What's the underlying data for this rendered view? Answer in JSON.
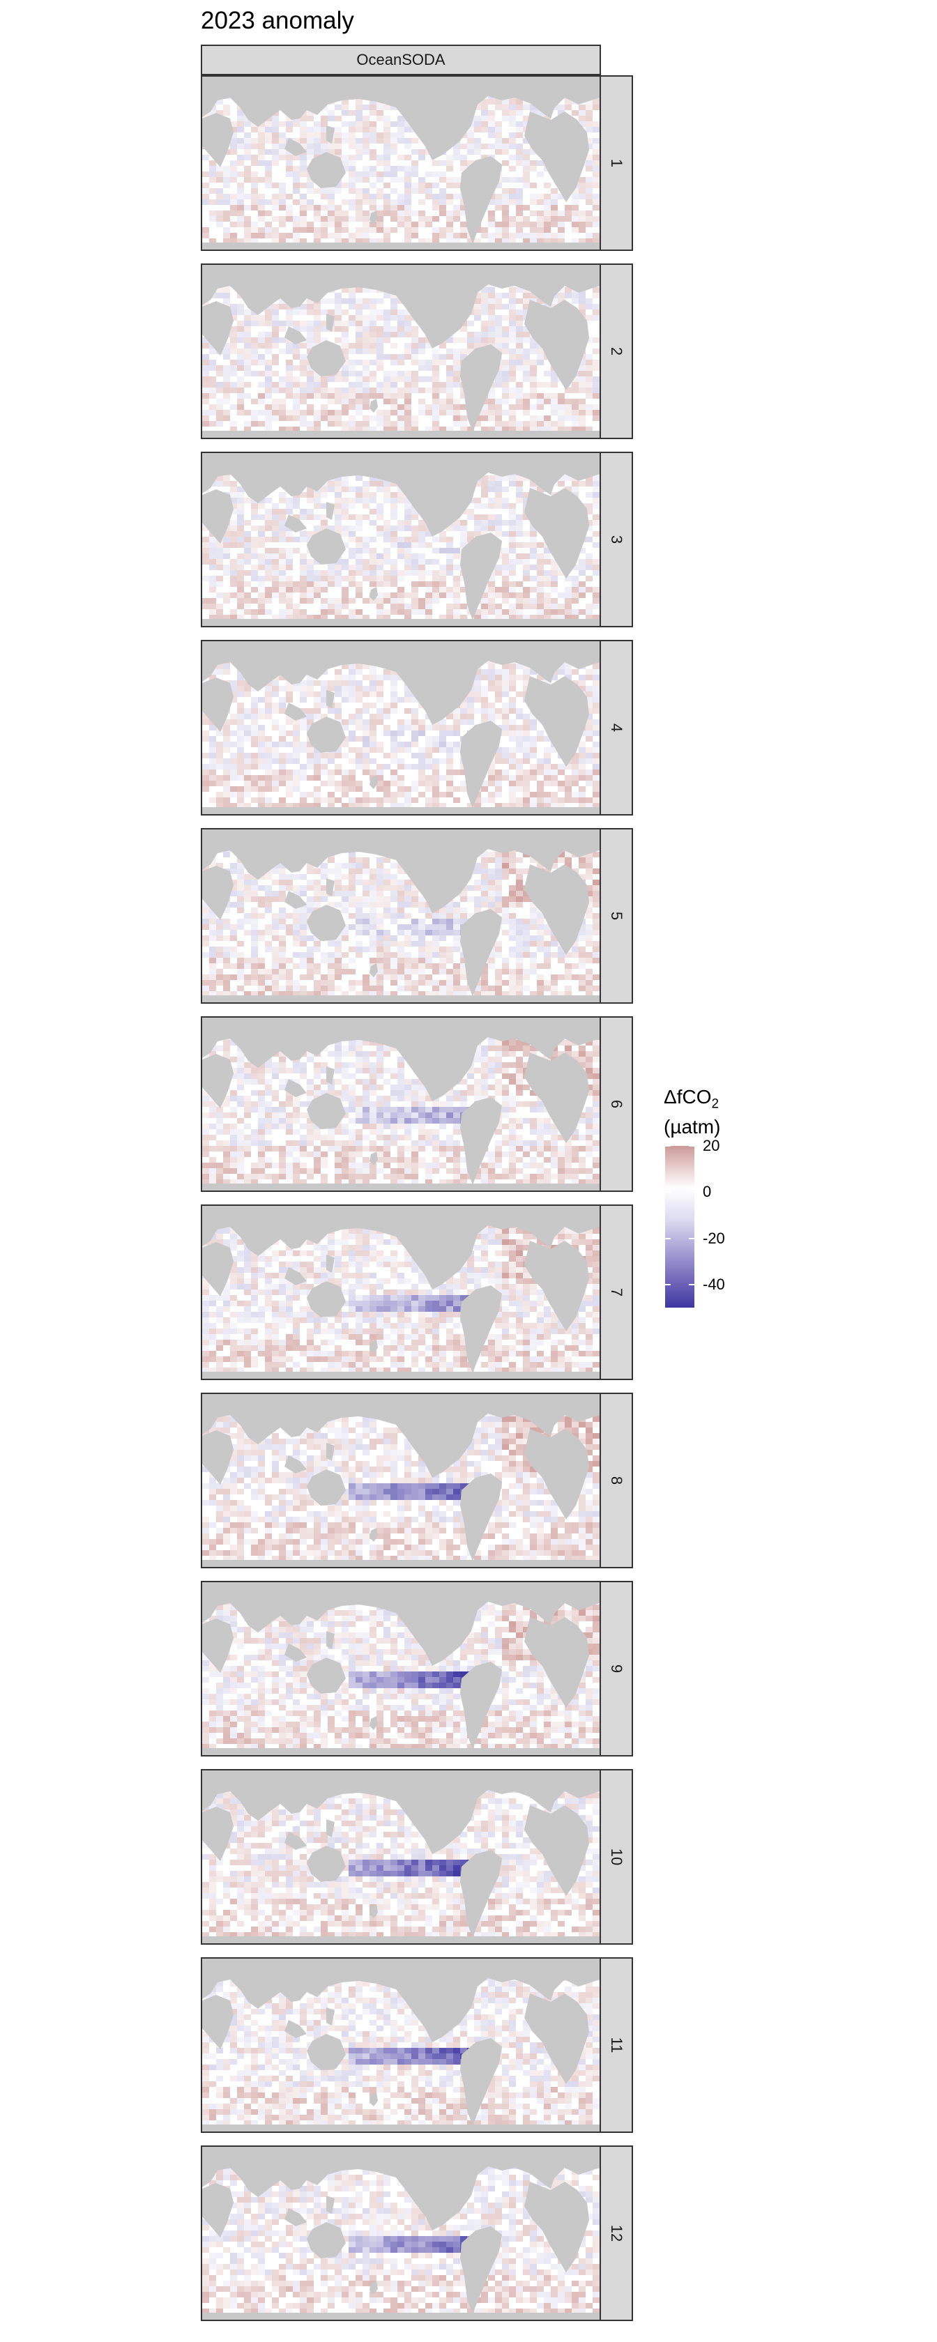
{
  "chart_data": {
    "type": "heatmap",
    "title": "2023 anomaly",
    "column_label": "OceanSODA",
    "panels": [
      "1",
      "2",
      "3",
      "4",
      "5",
      "6",
      "7",
      "8",
      "9",
      "10",
      "11",
      "12"
    ],
    "legend": {
      "title": "ΔfCO",
      "title_sub": "2",
      "unit": "(µatm)",
      "ticks": [
        "20",
        "0",
        "-20",
        "-40"
      ],
      "tick_values": [
        20,
        0,
        -20,
        -40
      ],
      "range": [
        -50,
        20
      ],
      "placement": "right"
    },
    "colors": {
      "land": "#c8c8c8",
      "ocean": "#ffffff",
      "positive": "#c9928f",
      "negative": "#3a319f"
    },
    "equatorial_pacific_anomaly_by_month": [
      0,
      0,
      -4,
      -6,
      -12,
      -22,
      -28,
      -40,
      -44,
      -46,
      -42,
      -38
    ]
  }
}
